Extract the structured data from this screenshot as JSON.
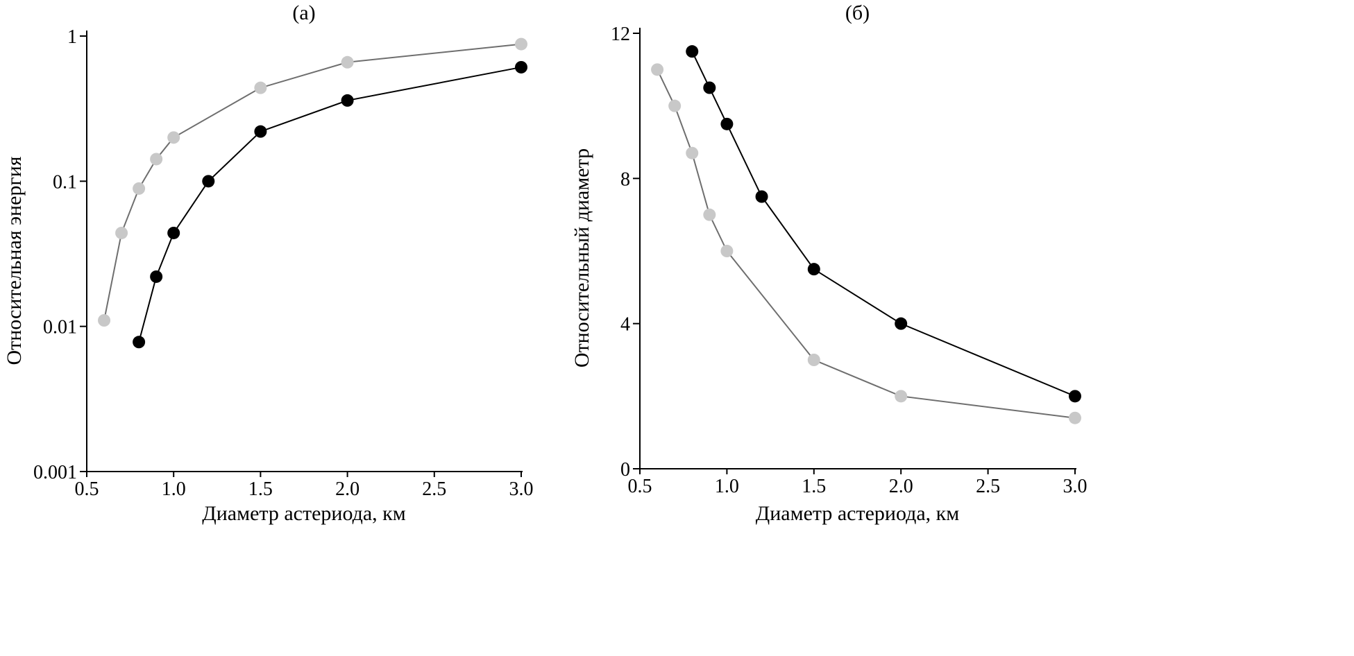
{
  "chart_data": [
    {
      "type": "line",
      "title": "(а)",
      "x_label": "Диаметр астериода, км",
      "y_label": "Относительная энергия",
      "log_y": true,
      "xlim": [
        0.5,
        3.0
      ],
      "ylim": [
        0.001,
        1
      ],
      "xticks": [
        0.5,
        {
          "value": 1.0,
          "label": "1.0"
        },
        1.5,
        {
          "value": 2.0,
          "label": "2.0"
        },
        2.5,
        {
          "value": 3.0,
          "label": "3.0"
        }
      ],
      "yticks": [
        0.001,
        0.01,
        0.1,
        1
      ],
      "series": [
        {
          "color": "#c8c8c8",
          "line_color": "#6e6e6e",
          "x": [
            0.6,
            0.7,
            0.8,
            0.9,
            1.0,
            1.5,
            2.0,
            3.0
          ],
          "values": [
            0.011,
            0.044,
            0.089,
            0.142,
            0.2,
            0.44,
            0.66,
            0.88
          ]
        },
        {
          "color": "#000000",
          "line_color": "#000000",
          "x": [
            0.8,
            0.9,
            1.0,
            1.2,
            1.5,
            2.0,
            3.0
          ],
          "values": [
            0.0078,
            0.022,
            0.044,
            0.1,
            0.22,
            0.36,
            0.61
          ]
        }
      ]
    },
    {
      "type": "line",
      "title": "(б)",
      "x_label": "Диаметр астериода, км",
      "y_label": "Относительный диаметр",
      "log_y": false,
      "xlim": [
        0.5,
        3.0
      ],
      "ylim": [
        0,
        12
      ],
      "xticks": [
        0.5,
        {
          "value": 1.0,
          "label": "1.0"
        },
        1.5,
        {
          "value": 2.0,
          "label": "2.0"
        },
        2.5,
        {
          "value": 3.0,
          "label": "3.0"
        }
      ],
      "yticks": [
        0,
        4,
        8,
        12
      ],
      "series": [
        {
          "color": "#000000",
          "line_color": "#000000",
          "x": [
            0.8,
            0.9,
            1.0,
            1.2,
            1.5,
            2.0,
            3.0
          ],
          "values": [
            11.5,
            10.5,
            9.5,
            7.5,
            5.5,
            4.0,
            2.0
          ]
        },
        {
          "color": "#c8c8c8",
          "line_color": "#6e6e6e",
          "x": [
            0.6,
            0.7,
            0.8,
            0.9,
            1.0,
            1.5,
            2.0,
            3.0
          ],
          "values": [
            11.0,
            10.0,
            8.7,
            7.0,
            6.0,
            3.0,
            2.0,
            1.4
          ]
        }
      ]
    }
  ]
}
